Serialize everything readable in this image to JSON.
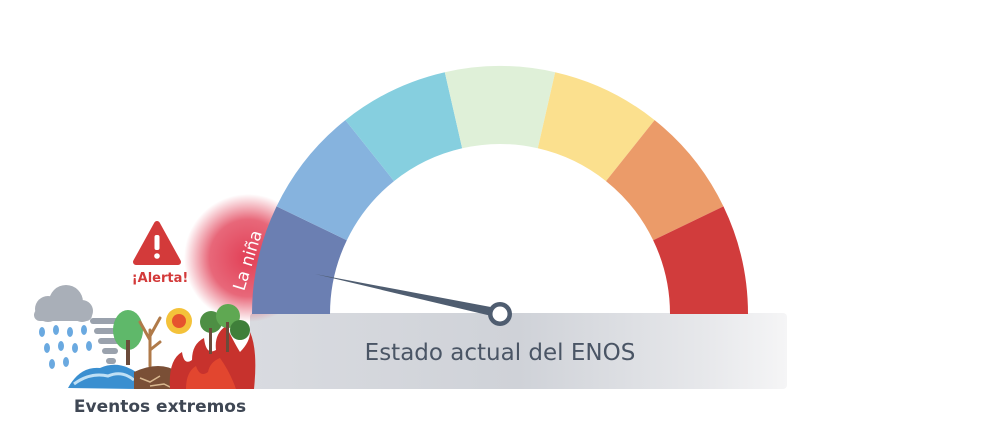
{
  "gauge": {
    "segments": [
      {
        "color": "#6b7fb2"
      },
      {
        "color": "#86b3de"
      },
      {
        "color": "#86cfdf"
      },
      {
        "color": "#dff0d8"
      },
      {
        "color": "#fbe08e"
      },
      {
        "color": "#eb9b69"
      },
      {
        "color": "#d13c3c"
      }
    ],
    "active_label": "La niña",
    "active_color": "#e0354d"
  },
  "base_label": "Estado actual del ENOS",
  "alert": {
    "label": "¡Alerta!",
    "color": "#d33a3a"
  },
  "events_label": "Eventos extremos",
  "icons": [
    "warning-icon",
    "rain-cloud-icon",
    "tornado-icon",
    "flood-icon",
    "drought-tree-icon",
    "sun-icon",
    "fire-icon",
    "trees-icon"
  ]
}
